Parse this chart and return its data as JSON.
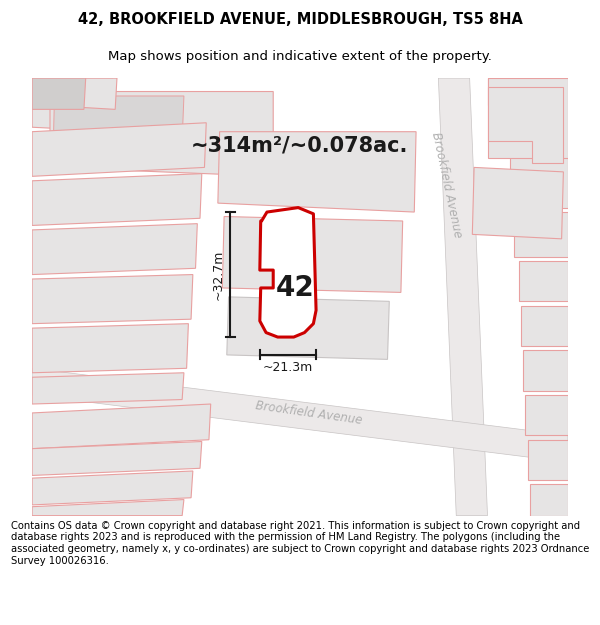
{
  "title_line1": "42, BROOKFIELD AVENUE, MIDDLESBROUGH, TS5 8HA",
  "title_line2": "Map shows position and indicative extent of the property.",
  "area_text": "~314m²/~0.078ac.",
  "width_text": "~21.3m",
  "height_text": "~32.7m",
  "number_label": "42",
  "footer_text": "Contains OS data © Crown copyright and database right 2021. This information is subject to Crown copyright and database rights 2023 and is reproduced with the permission of HM Land Registry. The polygons (including the associated geometry, namely x, y co-ordinates) are subject to Crown copyright and database rights 2023 Ordnance Survey 100026316.",
  "map_bg": "#f2f0f0",
  "plot_fill": "#ffffff",
  "plot_outline": "#cc0000",
  "road_label_color": "#b0b0b0",
  "block_fill": "#e6e4e4",
  "pink_stroke": "#e8a0a0",
  "gray_stroke": "#c8c4c4",
  "title_fontsize": 10.5,
  "subtitle_fontsize": 9.5,
  "footer_fontsize": 7.2,
  "area_fontsize": 15
}
